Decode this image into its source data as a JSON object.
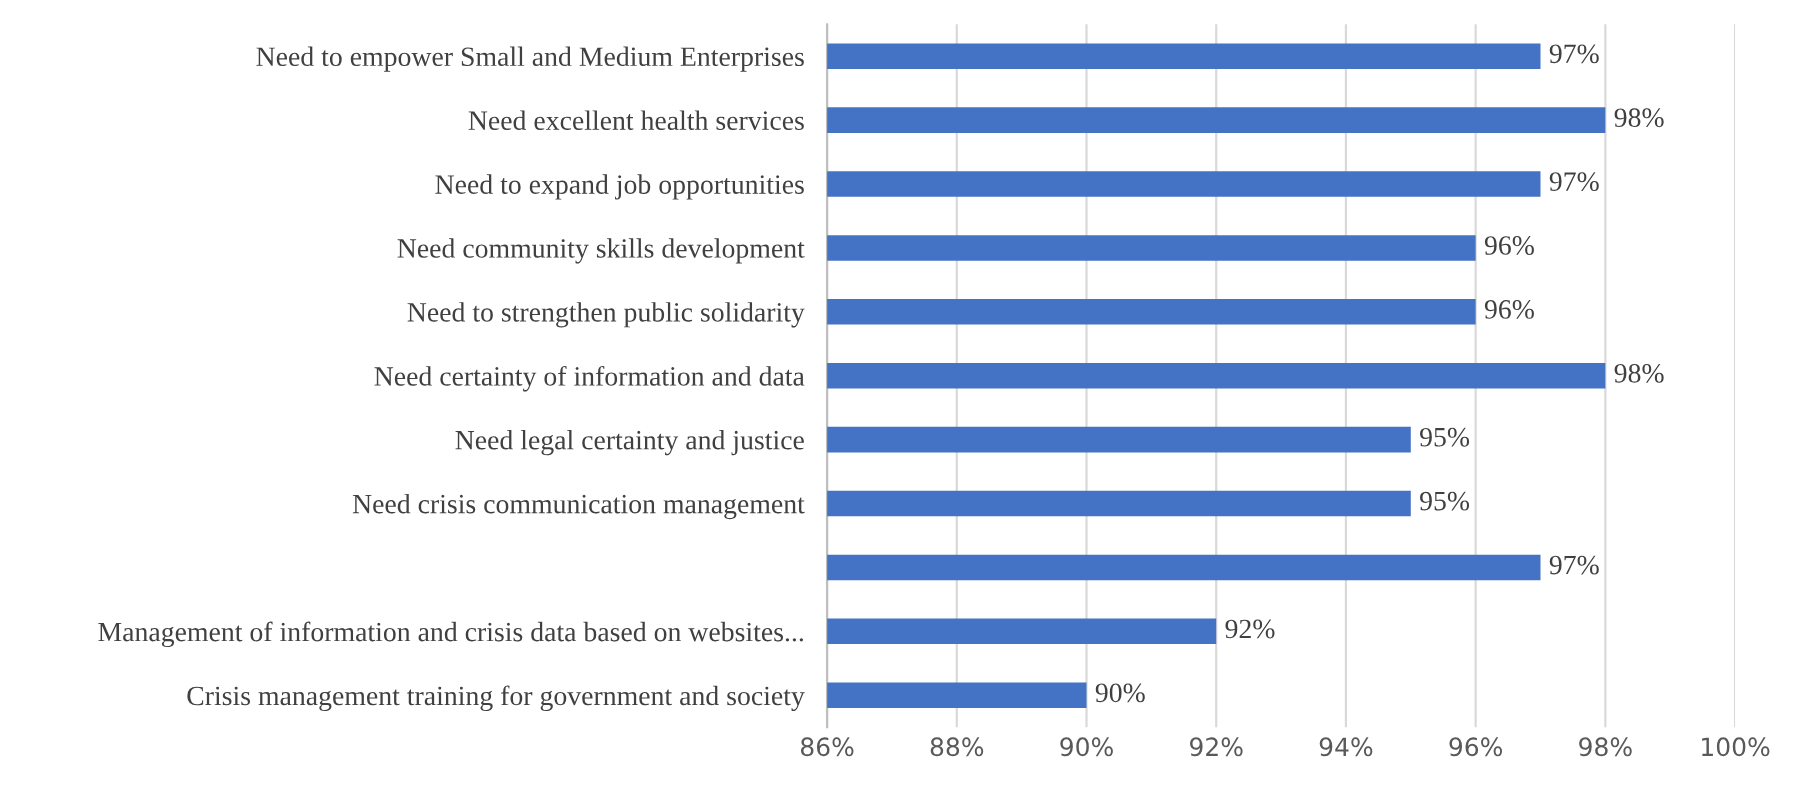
{
  "chart_data": {
    "type": "bar",
    "orientation": "horizontal",
    "categories": [
      "Need to empower Small and Medium Enterprises",
      "Need excellent health services",
      "Need to expand job opportunities",
      "Need community skills development",
      "Need to strengthen public solidarity",
      "Need certainty of information and data",
      "Need legal certainty and justice",
      "Need crisis communication management",
      null,
      "Management of information and crisis data based on websites...",
      "Crisis management training for government and society"
    ],
    "values": [
      97,
      98,
      97,
      96,
      96,
      98,
      95,
      95,
      97,
      92,
      90
    ],
    "value_labels": [
      "97%",
      "98%",
      "97%",
      "96%",
      "96%",
      "98%",
      "95%",
      "95%",
      "97%",
      "92%",
      "90%"
    ],
    "color": "#4472c4",
    "xlim": [
      86,
      100
    ],
    "xticks": [
      {
        "value": 86,
        "label": "86%"
      },
      {
        "value": 88,
        "label": "88%"
      },
      {
        "value": 90,
        "label": "90%"
      },
      {
        "value": 92,
        "label": "92%"
      },
      {
        "value": 94,
        "label": "94%"
      },
      {
        "value": 96,
        "label": "96%"
      },
      {
        "value": 98,
        "label": "98%"
      },
      {
        "value": 100,
        "label": "100%"
      }
    ],
    "grid": "x",
    "legend": false
  }
}
